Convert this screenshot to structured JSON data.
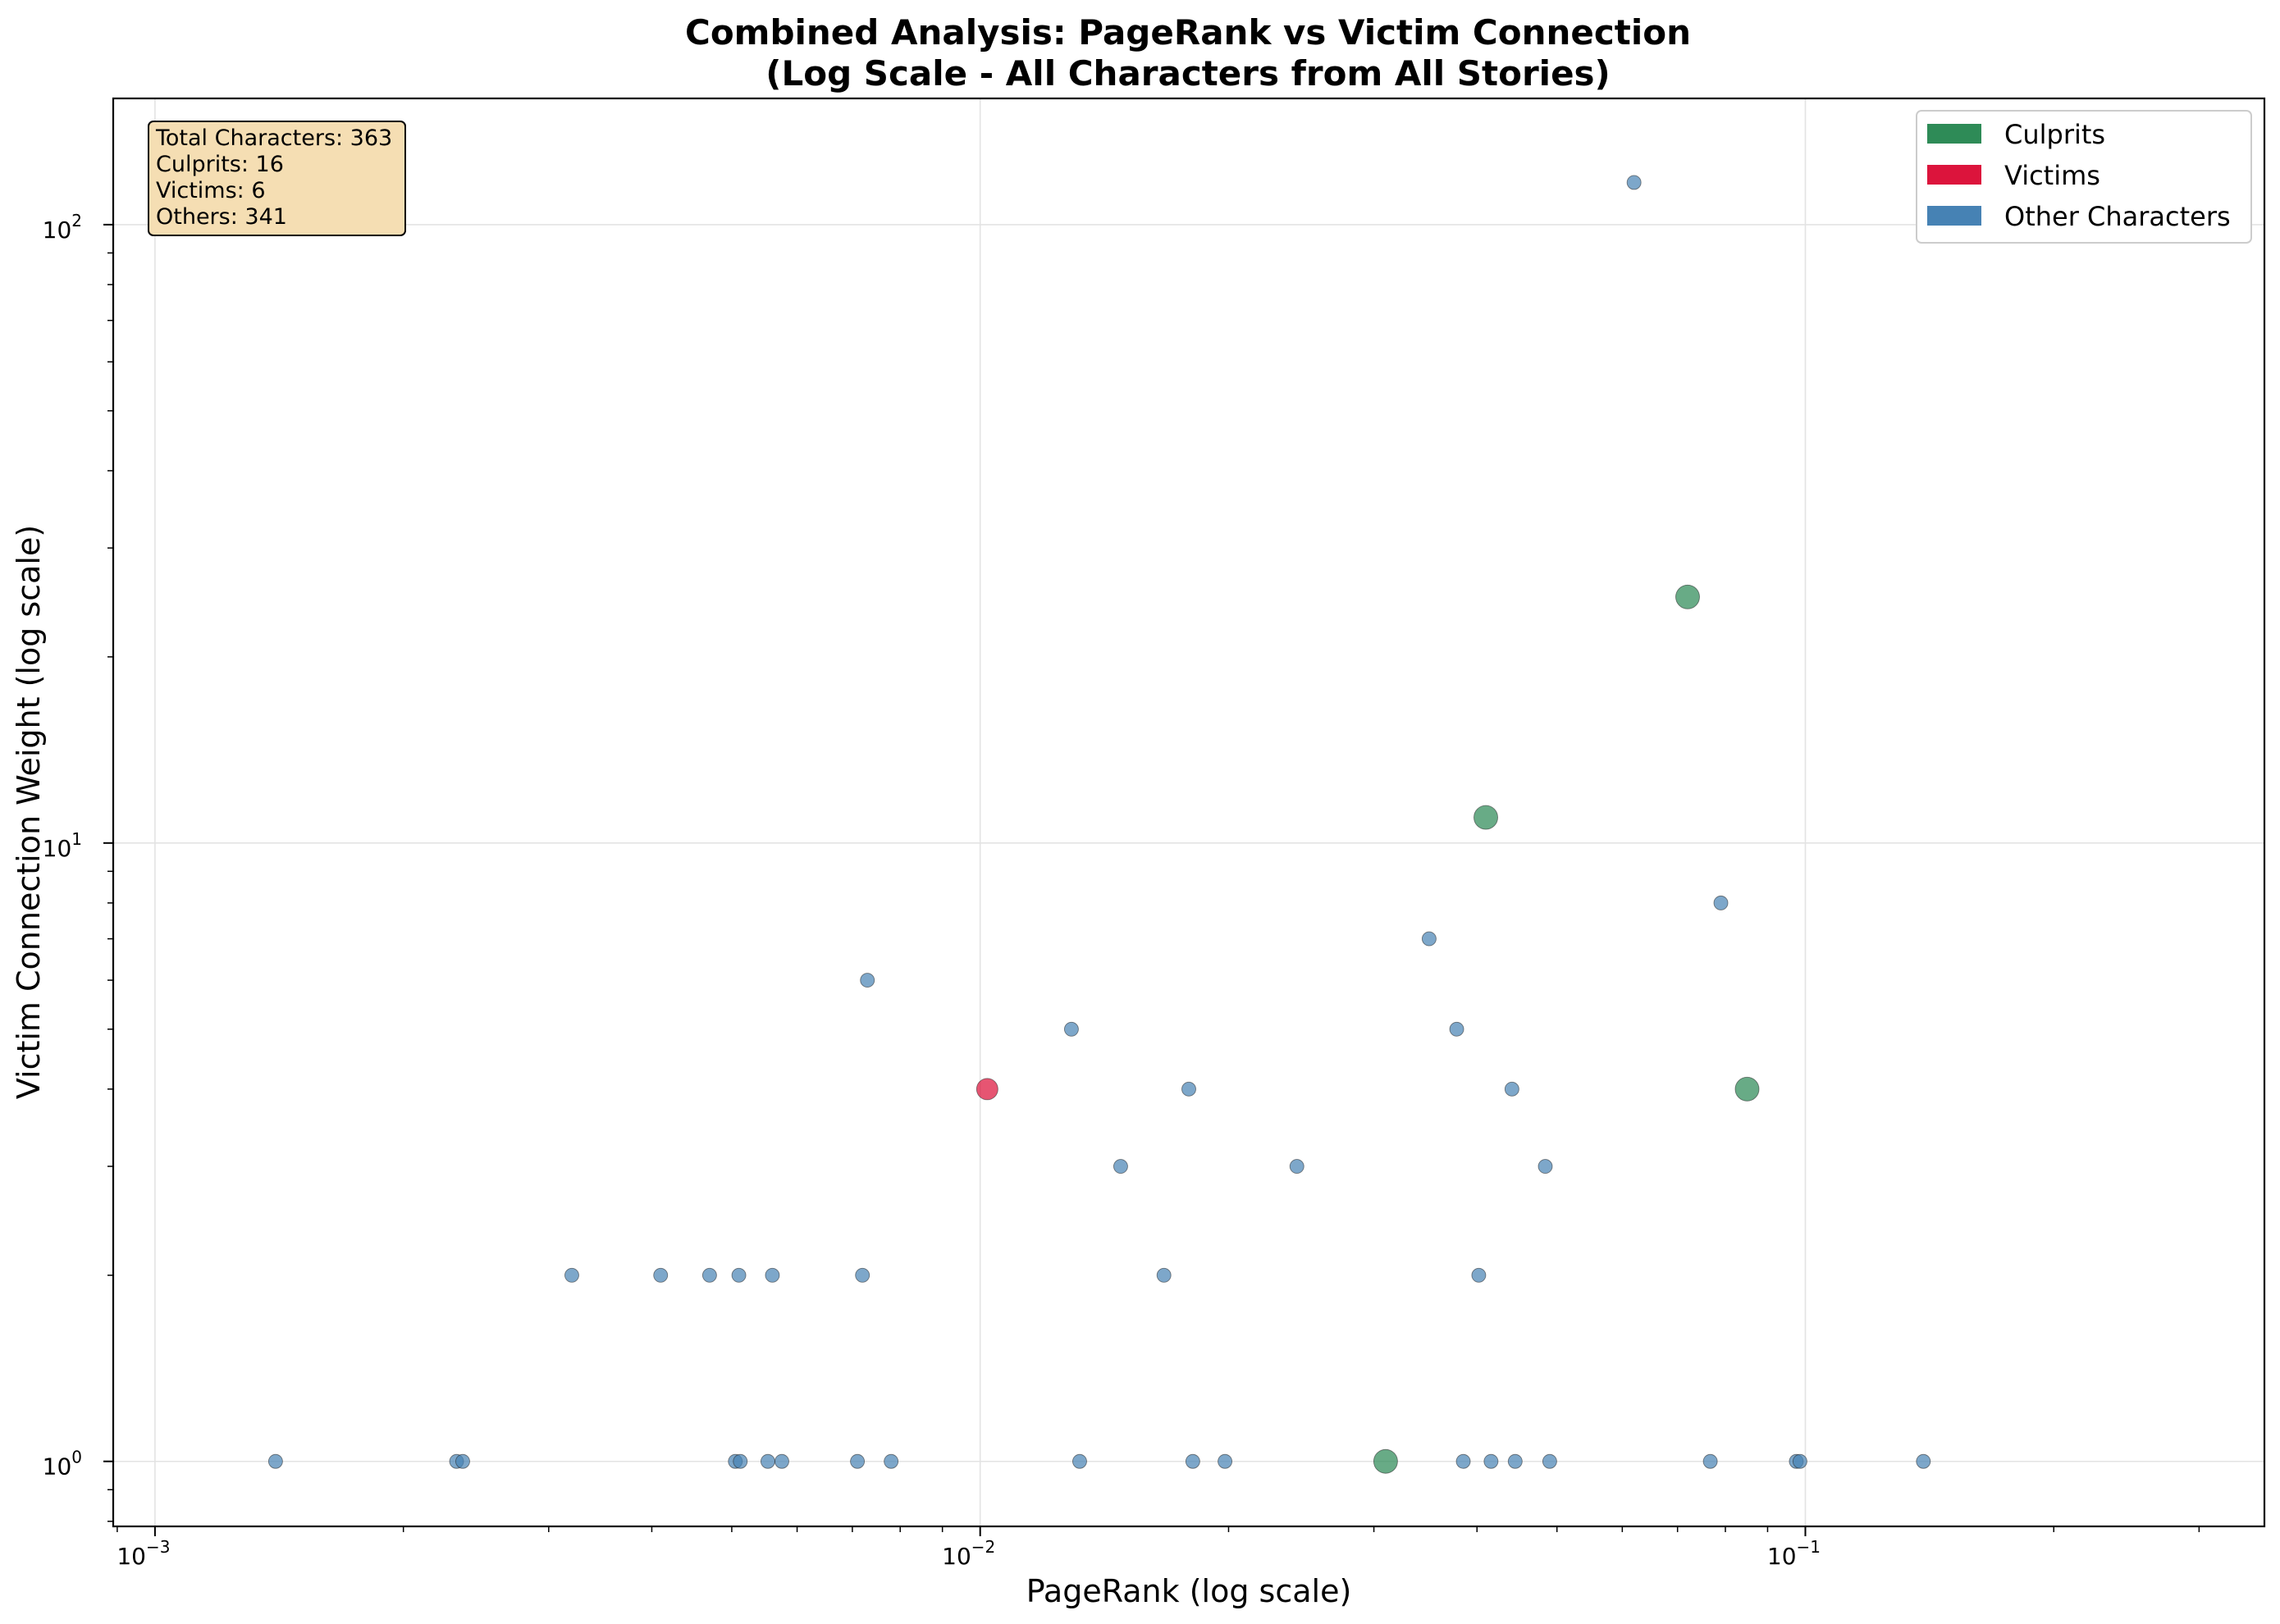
{
  "chart_data": {
    "type": "scatter",
    "title": [
      "Combined Analysis: PageRank vs Victim Connection",
      "(Log Scale - All Characters from All Stories)"
    ],
    "xlabel": "PageRank (log scale)",
    "ylabel": "Victim Connection Weight (log scale)",
    "xscale": "log",
    "yscale": "log",
    "xlim": [
      0.00089,
      0.36
    ],
    "ylim": [
      0.785,
      160
    ],
    "x_ticks": [
      {
        "base": "10",
        "exp": "−3",
        "value": 0.001
      },
      {
        "base": "10",
        "exp": "−2",
        "value": 0.01
      },
      {
        "base": "10",
        "exp": "−1",
        "value": 0.1
      }
    ],
    "y_ticks": [
      {
        "base": "10",
        "exp": "0",
        "value": 1
      },
      {
        "base": "10",
        "exp": "1",
        "value": 10
      },
      {
        "base": "10",
        "exp": "2",
        "value": 100
      }
    ],
    "grid": true,
    "legend_position": "top-right",
    "legend": [
      {
        "label": "Culprits",
        "color": "#2e8b57"
      },
      {
        "label": "Victims",
        "color": "#dc143c"
      },
      {
        "label": "Other Characters",
        "color": "#4682b4"
      }
    ],
    "stats_box": [
      "Total Characters: 363",
      "Culprits: 16",
      "Victims: 6",
      "Others: 341"
    ],
    "series": [
      {
        "name": "Culprits",
        "color": "#2e8b57",
        "points": [
          [
            0.072,
            25
          ],
          [
            0.041,
            11
          ],
          [
            0.085,
            4
          ],
          [
            0.031,
            1
          ]
        ]
      },
      {
        "name": "Victims",
        "color": "#dc143c",
        "points": [
          [
            0.0102,
            4
          ]
        ]
      },
      {
        "name": "Other Characters",
        "color": "#4682b4",
        "points": [
          [
            0.062,
            117
          ],
          [
            0.079,
            8
          ],
          [
            0.035,
            7
          ],
          [
            0.0073,
            6
          ],
          [
            0.0129,
            5
          ],
          [
            0.0378,
            5
          ],
          [
            0.0179,
            4
          ],
          [
            0.0441,
            4
          ],
          [
            0.0148,
            3
          ],
          [
            0.0242,
            3
          ],
          [
            0.0484,
            3
          ],
          [
            0.0032,
            2
          ],
          [
            0.0041,
            2
          ],
          [
            0.0047,
            2
          ],
          [
            0.0051,
            2
          ],
          [
            0.0056,
            2
          ],
          [
            0.0072,
            2
          ],
          [
            0.0167,
            2
          ],
          [
            0.0402,
            2
          ],
          [
            0.0014,
            1
          ],
          [
            0.00232,
            1
          ],
          [
            0.00236,
            1
          ],
          [
            0.00505,
            1
          ],
          [
            0.00512,
            1
          ],
          [
            0.00553,
            1
          ],
          [
            0.00575,
            1
          ],
          [
            0.0071,
            1
          ],
          [
            0.0078,
            1
          ],
          [
            0.0132,
            1
          ],
          [
            0.0181,
            1
          ],
          [
            0.0198,
            1
          ],
          [
            0.0385,
            1
          ],
          [
            0.0416,
            1
          ],
          [
            0.0445,
            1
          ],
          [
            0.049,
            1
          ],
          [
            0.0767,
            1
          ],
          [
            0.0975,
            1
          ],
          [
            0.0985,
            1
          ],
          [
            0.139,
            1
          ]
        ]
      }
    ]
  }
}
